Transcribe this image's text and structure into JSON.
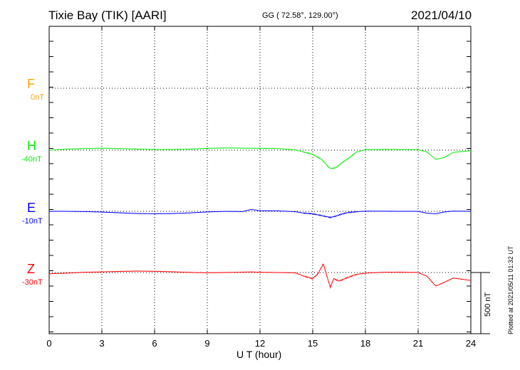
{
  "header": {
    "station": "Tixie Bay (TIK)  [AARI]",
    "coords": "GG ( 72.58°, 129.00°)",
    "date": "2021/04/10"
  },
  "footer": {
    "xlabel": "U T (hour)",
    "plotted": "Plotted at 2021/05/11 01:32 UT",
    "scale": "500 nT"
  },
  "components": [
    {
      "name": "F",
      "offset": "0nT",
      "color": "#FFA500"
    },
    {
      "name": "H",
      "offset": "-40nT",
      "color": "#00EE00"
    },
    {
      "name": "E",
      "offset": "-10nT",
      "color": "#0000FF"
    },
    {
      "name": "Z",
      "offset": "-30nT",
      "color": "#FF0000"
    }
  ],
  "chart_data": {
    "type": "line",
    "title": "Tixie Bay (TIK)  [AARI]",
    "xlabel": "U T (hour)",
    "xlim": [
      0,
      24
    ],
    "x_ticks": [
      "0",
      "3",
      "6",
      "9",
      "12",
      "15",
      "18",
      "21",
      "24"
    ],
    "grid": true,
    "scale_bar_nT": 500,
    "series": [
      {
        "name": "F",
        "offset_nT": 0,
        "x": [],
        "values": []
      },
      {
        "name": "H",
        "offset_nT": -40,
        "x": [
          0,
          1,
          2,
          3,
          4,
          5,
          6,
          7,
          8,
          9,
          10,
          11,
          12,
          13,
          14,
          14.5,
          15,
          15.5,
          16,
          16.3,
          16.6,
          17,
          17.5,
          18,
          19,
          20,
          21,
          21.5,
          22,
          22.5,
          23,
          24
        ],
        "values": [
          0,
          -8,
          -13,
          -16,
          -13,
          -9,
          -5,
          -5,
          -8,
          -15,
          -18,
          -17,
          -15,
          -13,
          -2,
          15,
          35,
          75,
          150,
          145,
          110,
          70,
          15,
          -3,
          -6,
          -5,
          -4,
          15,
          75,
          60,
          18,
          5
        ]
      },
      {
        "name": "E",
        "offset_nT": -10,
        "x": [
          0,
          1,
          2,
          3,
          4,
          5,
          6,
          7,
          8,
          9,
          10,
          11,
          11.5,
          12,
          13,
          14,
          14.5,
          15,
          15.5,
          16,
          16.3,
          16.6,
          17,
          17.5,
          18,
          19,
          20,
          21,
          21.5,
          22,
          22.5,
          23,
          24
        ],
        "values": [
          0,
          0,
          2,
          6,
          12,
          18,
          20,
          18,
          13,
          5,
          0,
          2,
          -15,
          -5,
          -4,
          3,
          15,
          20,
          35,
          50,
          40,
          25,
          10,
          3,
          -2,
          -1,
          0,
          0,
          15,
          20,
          5,
          -2,
          0
        ]
      },
      {
        "name": "Z",
        "offset_nT": -30,
        "x": [
          0,
          1,
          2,
          3,
          4,
          5,
          6,
          7,
          8,
          9,
          10,
          11,
          11.5,
          12,
          13,
          14,
          14.5,
          15,
          15.3,
          15.6,
          16,
          16.2,
          16.5,
          17,
          17.5,
          18,
          19,
          20,
          21,
          21.5,
          22,
          22.5,
          23,
          24
        ],
        "values": [
          10,
          5,
          -2,
          -5,
          -9,
          -12,
          -10,
          -6,
          -1,
          2,
          0,
          -3,
          -5,
          -2,
          0,
          2,
          30,
          50,
          10,
          -70,
          120,
          50,
          70,
          40,
          15,
          5,
          -2,
          -3,
          0,
          30,
          110,
          80,
          45,
          65
        ]
      }
    ]
  }
}
